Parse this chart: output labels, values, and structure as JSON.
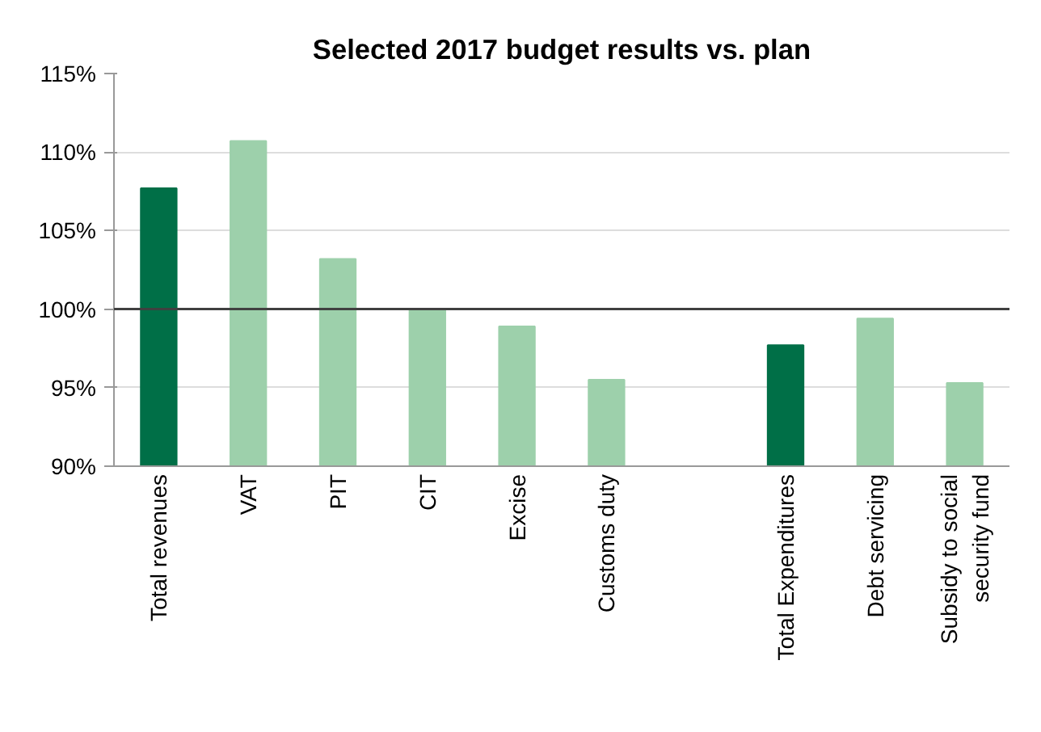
{
  "chart_data": {
    "type": "bar",
    "title": "Selected 2017 budget results vs. plan",
    "categories": [
      "Total revenues",
      "VAT",
      "PIT",
      "CIT",
      "Excise",
      "Customs duty",
      null,
      "Total Expenditures",
      "Debt servicing",
      "Subsidy to social\nsecurity fund"
    ],
    "values": [
      107.7,
      110.7,
      103.2,
      100.0,
      98.9,
      95.5,
      null,
      97.7,
      99.4,
      95.3
    ],
    "colors": [
      "#006f47",
      "#9dd0ab",
      "#9dd0ab",
      "#9dd0ab",
      "#9dd0ab",
      "#9dd0ab",
      "#9dd0ab",
      "#006f47",
      "#9dd0ab",
      "#9dd0ab"
    ],
    "ylim": [
      90,
      115
    ],
    "yticks": [
      {
        "value": 90,
        "label": "90%"
      },
      {
        "value": 95,
        "label": "95%"
      },
      {
        "value": 100,
        "label": "100%"
      },
      {
        "value": 105,
        "label": "105%"
      },
      {
        "value": 110,
        "label": "110%"
      },
      {
        "value": 115,
        "label": "115%"
      }
    ],
    "ref_lines": [
      {
        "axis": "y",
        "value": 100,
        "label": null,
        "color": "#404040"
      }
    ],
    "grid": "y"
  }
}
